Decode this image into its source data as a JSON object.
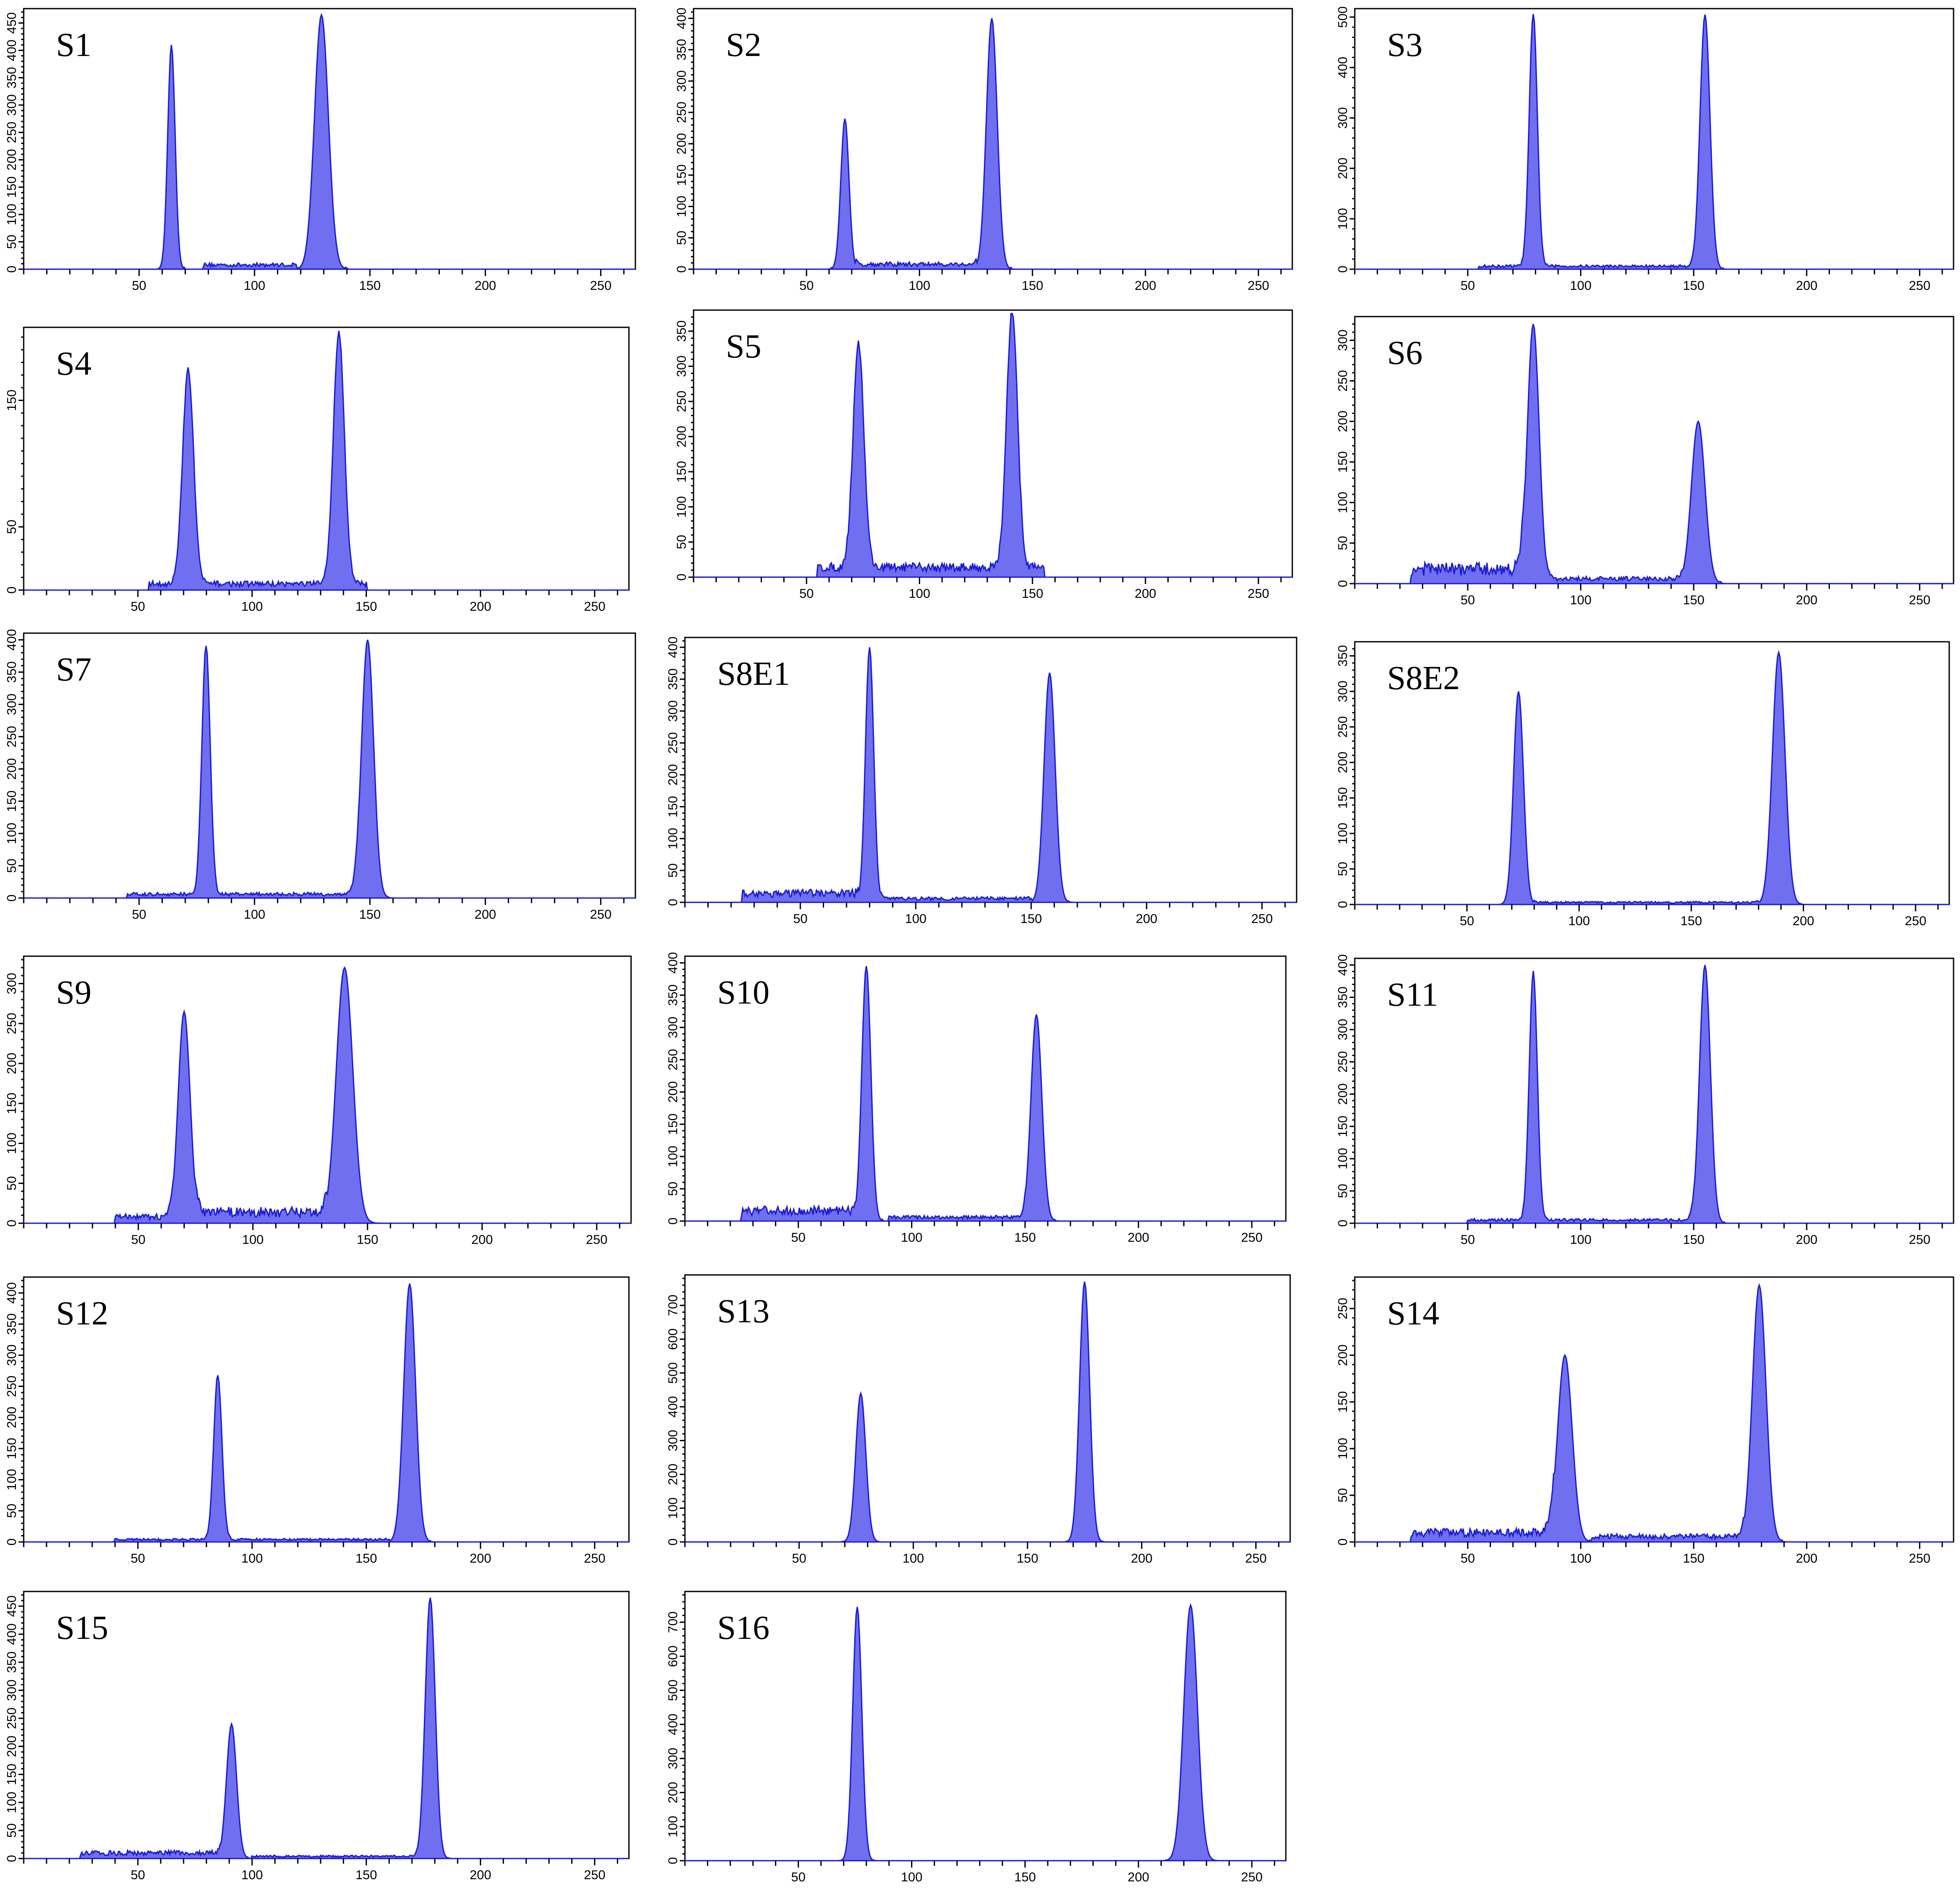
{
  "colors": {
    "fill": "#6f6ff0",
    "stroke": "#1a1ad6",
    "axis": "#000000",
    "background": "#ffffff"
  },
  "chart_data": [
    {
      "type": "area",
      "label": "S1",
      "xlim": [
        0,
        265
      ],
      "xticks": [
        50,
        100,
        150,
        200,
        250
      ],
      "yticks": [
        0,
        50,
        100,
        150,
        200,
        250,
        300,
        350,
        400,
        450
      ],
      "ylim": [
        0,
        470
      ],
      "series": [
        {
          "baseline": 4,
          "peaks": [
            {
              "x": 64,
              "y": 410,
              "width": 1.6
            },
            {
              "x": 129,
              "y": 465,
              "width": 3.0
            }
          ],
          "debris": [
            {
              "from": 78,
              "to": 118,
              "level": 8
            }
          ]
        }
      ]
    },
    {
      "type": "area",
      "label": "S2",
      "xlim": [
        0,
        265
      ],
      "xticks": [
        50,
        100,
        150,
        200,
        250
      ],
      "yticks": [
        0,
        50,
        100,
        150,
        200,
        250,
        300,
        350,
        400
      ],
      "ylim": [
        0,
        410
      ],
      "series": [
        {
          "baseline": 3,
          "peaks": [
            {
              "x": 67,
              "y": 240,
              "width": 1.8
            },
            {
              "x": 132,
              "y": 400,
              "width": 2.4
            }
          ],
          "debris": [
            {
              "from": 72,
              "to": 125,
              "level": 8
            }
          ]
        }
      ]
    },
    {
      "type": "area",
      "label": "S3",
      "xlim": [
        0,
        265
      ],
      "xticks": [
        50,
        100,
        150,
        200,
        250
      ],
      "yticks": [
        0,
        100,
        200,
        300,
        400,
        500
      ],
      "ylim": [
        0,
        510
      ],
      "series": [
        {
          "baseline": 3,
          "peaks": [
            {
              "x": 79,
              "y": 500,
              "width": 1.8
            },
            {
              "x": 155,
              "y": 505,
              "width": 2.2
            }
          ],
          "debris": [
            {
              "from": 55,
              "to": 150,
              "level": 6
            }
          ]
        }
      ]
    },
    {
      "type": "area",
      "label": "S4",
      "xlim": [
        0,
        265
      ],
      "xticks": [
        50,
        100,
        150,
        200,
        250
      ],
      "yticks": [
        0,
        50,
        150
      ],
      "ylim": [
        0,
        205
      ],
      "series": [
        {
          "baseline": 2,
          "peaks": [
            {
              "x": 72,
              "y": 170,
              "width": 2.4
            },
            {
              "x": 138,
              "y": 200,
              "width": 2.4
            }
          ],
          "debris": [
            {
              "from": 55,
              "to": 150,
              "level": 5
            }
          ]
        }
      ]
    },
    {
      "type": "area",
      "label": "S5",
      "xlim": [
        0,
        265
      ],
      "xticks": [
        50,
        100,
        150,
        200,
        250
      ],
      "yticks": [
        0,
        50,
        100,
        150,
        200,
        250,
        300,
        350
      ],
      "ylim": [
        0,
        375
      ],
      "series": [
        {
          "baseline": 3,
          "peaks": [
            {
              "x": 73,
              "y": 320,
              "width": 2.4
            },
            {
              "x": 141,
              "y": 370,
              "width": 2.4
            }
          ],
          "debris": [
            {
              "from": 55,
              "to": 155,
              "level": 14
            }
          ]
        }
      ]
    },
    {
      "type": "area",
      "label": "S6",
      "xlim": [
        0,
        265
      ],
      "xticks": [
        50,
        100,
        150,
        200,
        250
      ],
      "yticks": [
        0,
        50,
        100,
        150,
        200,
        250,
        300
      ],
      "ylim": [
        0,
        325
      ],
      "series": [
        {
          "baseline": 3,
          "peaks": [
            {
              "x": 79,
              "y": 320,
              "width": 2.6
            },
            {
              "x": 152,
              "y": 200,
              "width": 3.0
            }
          ],
          "debris": [
            {
              "from": 25,
              "to": 75,
              "level": 18
            },
            {
              "from": 85,
              "to": 145,
              "level": 6
            }
          ]
        }
      ]
    },
    {
      "type": "area",
      "label": "S7",
      "xlim": [
        0,
        265
      ],
      "xticks": [
        50,
        100,
        150,
        200,
        250
      ],
      "yticks": [
        0,
        50,
        100,
        150,
        200,
        250,
        300,
        350,
        400
      ],
      "ylim": [
        0,
        405
      ],
      "series": [
        {
          "baseline": 3,
          "peaks": [
            {
              "x": 79,
              "y": 385,
              "width": 1.8
            },
            {
              "x": 149,
              "y": 400,
              "width": 2.6
            }
          ],
          "debris": [
            {
              "from": 45,
              "to": 145,
              "level": 6
            }
          ]
        }
      ]
    },
    {
      "type": "area",
      "label": "S8E1",
      "xlim": [
        0,
        265
      ],
      "xticks": [
        50,
        100,
        150,
        200,
        250
      ],
      "yticks": [
        0,
        50,
        100,
        150,
        200,
        250,
        300,
        350,
        400
      ],
      "ylim": [
        0,
        410
      ],
      "series": [
        {
          "baseline": 3,
          "peaks": [
            {
              "x": 80,
              "y": 400,
              "width": 1.8
            },
            {
              "x": 158,
              "y": 360,
              "width": 2.4
            }
          ],
          "debris": [
            {
              "from": 25,
              "to": 75,
              "level": 14
            },
            {
              "from": 85,
              "to": 150,
              "level": 6
            }
          ]
        }
      ]
    },
    {
      "type": "area",
      "label": "S8E2",
      "xlim": [
        0,
        265
      ],
      "xticks": [
        50,
        100,
        150,
        200,
        250
      ],
      "yticks": [
        0,
        50,
        100,
        150,
        200,
        250,
        300,
        350
      ],
      "ylim": [
        0,
        365
      ],
      "series": [
        {
          "baseline": 2,
          "peaks": [
            {
              "x": 73,
              "y": 300,
              "width": 2.2
            },
            {
              "x": 189,
              "y": 355,
              "width": 2.8
            }
          ],
          "debris": [
            {
              "from": 80,
              "to": 180,
              "level": 3
            }
          ]
        }
      ]
    },
    {
      "type": "area",
      "label": "S9",
      "xlim": [
        0,
        265
      ],
      "xticks": [
        50,
        100,
        150,
        200,
        250
      ],
      "yticks": [
        0,
        50,
        100,
        150,
        200,
        250,
        300
      ],
      "ylim": [
        0,
        330
      ],
      "series": [
        {
          "baseline": 3,
          "peaks": [
            {
              "x": 70,
              "y": 265,
              "width": 2.6
            },
            {
              "x": 140,
              "y": 320,
              "width": 3.6
            }
          ],
          "debris": [
            {
              "from": 40,
              "to": 65,
              "level": 8
            },
            {
              "from": 75,
              "to": 132,
              "level": 14
            }
          ]
        }
      ]
    },
    {
      "type": "area",
      "label": "S10",
      "xlim": [
        0,
        265
      ],
      "xticks": [
        50,
        100,
        150,
        200,
        250
      ],
      "yticks": [
        0,
        50,
        100,
        150,
        200,
        250,
        300,
        350,
        400
      ],
      "ylim": [
        0,
        405
      ],
      "series": [
        {
          "baseline": 3,
          "peaks": [
            {
              "x": 80,
              "y": 395,
              "width": 2.0
            },
            {
              "x": 155,
              "y": 320,
              "width": 2.4
            }
          ],
          "debris": [
            {
              "from": 25,
              "to": 75,
              "level": 16
            },
            {
              "from": 90,
              "to": 150,
              "level": 6
            }
          ]
        }
      ]
    },
    {
      "type": "area",
      "label": "S11",
      "xlim": [
        0,
        265
      ],
      "xticks": [
        50,
        100,
        150,
        200,
        250
      ],
      "yticks": [
        0,
        50,
        100,
        150,
        200,
        250,
        300,
        350,
        400
      ],
      "ylim": [
        0,
        405
      ],
      "series": [
        {
          "baseline": 2,
          "peaks": [
            {
              "x": 79,
              "y": 385,
              "width": 1.8
            },
            {
              "x": 155,
              "y": 400,
              "width": 2.4
            }
          ],
          "debris": [
            {
              "from": 50,
              "to": 150,
              "level": 5
            }
          ]
        }
      ]
    },
    {
      "type": "area",
      "label": "S12",
      "xlim": [
        0,
        265
      ],
      "xticks": [
        50,
        100,
        150,
        200,
        250
      ],
      "yticks": [
        0,
        50,
        100,
        150,
        200,
        250,
        300,
        350,
        400
      ],
      "ylim": [
        0,
        420
      ],
      "series": [
        {
          "baseline": 2,
          "peaks": [
            {
              "x": 85,
              "y": 265,
              "width": 1.8
            },
            {
              "x": 169,
              "y": 415,
              "width": 2.6
            }
          ],
          "debris": [
            {
              "from": 40,
              "to": 160,
              "level": 4
            }
          ]
        }
      ]
    },
    {
      "type": "area",
      "label": "S13",
      "xlim": [
        0,
        265
      ],
      "xticks": [
        50,
        100,
        150,
        200,
        250
      ],
      "yticks": [
        0,
        100,
        200,
        300,
        400,
        500,
        600,
        700
      ],
      "ylim": [
        0,
        780
      ],
      "series": [
        {
          "baseline": 2,
          "peaks": [
            {
              "x": 77,
              "y": 440,
              "width": 2.2
            },
            {
              "x": 175,
              "y": 770,
              "width": 2.2
            }
          ],
          "debris": []
        }
      ]
    },
    {
      "type": "area",
      "label": "S14",
      "xlim": [
        0,
        265
      ],
      "xticks": [
        50,
        100,
        150,
        200,
        250
      ],
      "yticks": [
        0,
        50,
        100,
        150,
        200,
        250
      ],
      "ylim": [
        0,
        280
      ],
      "series": [
        {
          "baseline": 3,
          "peaks": [
            {
              "x": 93,
              "y": 200,
              "width": 3.2
            },
            {
              "x": 179,
              "y": 275,
              "width": 3.0
            }
          ],
          "debris": [
            {
              "from": 25,
              "to": 88,
              "level": 10
            },
            {
              "from": 105,
              "to": 172,
              "level": 6
            }
          ]
        }
      ]
    },
    {
      "type": "area",
      "label": "S15",
      "xlim": [
        0,
        265
      ],
      "xticks": [
        50,
        100,
        150,
        200,
        250
      ],
      "yticks": [
        0,
        50,
        100,
        150,
        200,
        250,
        300,
        350,
        400,
        450
      ],
      "ylim": [
        0,
        470
      ],
      "series": [
        {
          "baseline": 3,
          "peaks": [
            {
              "x": 91,
              "y": 240,
              "width": 2.2
            },
            {
              "x": 178,
              "y": 465,
              "width": 2.2
            }
          ],
          "debris": [
            {
              "from": 25,
              "to": 86,
              "level": 10
            },
            {
              "from": 100,
              "to": 172,
              "level": 4
            }
          ]
        }
      ]
    },
    {
      "type": "area",
      "label": "S16",
      "xlim": [
        0,
        265
      ],
      "xticks": [
        50,
        100,
        150,
        200,
        250
      ],
      "yticks": [
        0,
        100,
        200,
        300,
        400,
        500,
        600,
        700
      ],
      "ylim": [
        0,
        780
      ],
      "series": [
        {
          "baseline": 2,
          "peaks": [
            {
              "x": 76,
              "y": 745,
              "width": 2.0
            },
            {
              "x": 223,
              "y": 750,
              "width": 3.0
            }
          ],
          "debris": []
        }
      ]
    }
  ]
}
